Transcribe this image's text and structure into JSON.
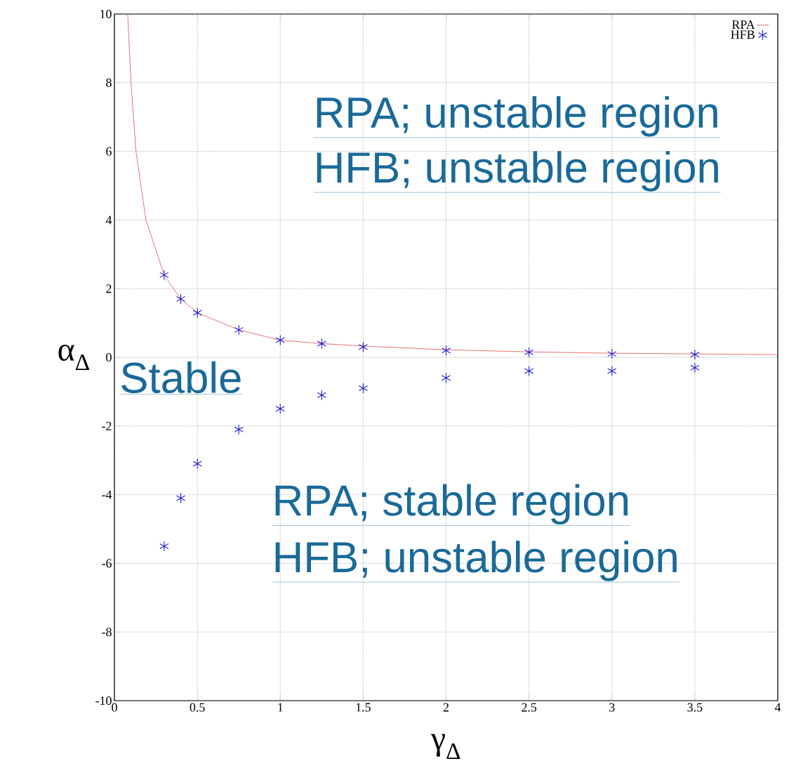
{
  "chart_data": {
    "type": "scatter",
    "xlabel": "γ$_{Δ}$",
    "ylabel": "α$_{Δ}$",
    "xlim": [
      0,
      4
    ],
    "ylim": [
      -10,
      10
    ],
    "xticks": [
      0,
      0.5,
      1,
      1.5,
      2,
      2.5,
      3,
      3.5,
      4
    ],
    "yticks": [
      -10,
      -8,
      -6,
      -4,
      -2,
      0,
      2,
      4,
      6,
      8,
      10
    ],
    "grid": true,
    "legend": "top right",
    "series": [
      {
        "name": "RPA",
        "type": "line",
        "color": "#e05050",
        "line_style": "solid",
        "x": [
          0.08,
          0.1,
          0.13,
          0.19,
          0.3,
          0.4,
          0.5,
          0.75,
          1,
          1.25,
          1.5,
          2,
          2.5,
          3,
          3.5,
          4
        ],
        "values": [
          10,
          8,
          6,
          4,
          2.4,
          1.7,
          1.3,
          0.8,
          0.5,
          0.4,
          0.33,
          0.22,
          0.16,
          0.12,
          0.1,
          0.08
        ]
      },
      {
        "name": "HFB",
        "marker": "cross",
        "color": "#2020d0",
        "x": [
          0.3,
          0.4,
          0.5,
          0.75,
          1,
          1.25,
          1.5,
          2,
          2.5,
          3,
          3.5,
          0.3,
          0.4,
          0.5,
          0.75,
          1,
          1.25,
          1.5,
          2,
          2.5,
          3,
          3.5
        ],
        "values": [
          2.4,
          1.7,
          1.3,
          0.8,
          0.5,
          0.4,
          0.3,
          0.2,
          0.15,
          0.1,
          0.08,
          -5.5,
          -4.1,
          -3.1,
          -2.1,
          -1.5,
          -1.1,
          -0.9,
          -0.6,
          -0.4,
          -0.4,
          -0.3
        ]
      }
    ],
    "annotations": [
      "RPA; unstable region",
      "HFB; unstable region",
      "Stable",
      "RPA; stable region",
      "HFB; unstable region"
    ]
  }
}
